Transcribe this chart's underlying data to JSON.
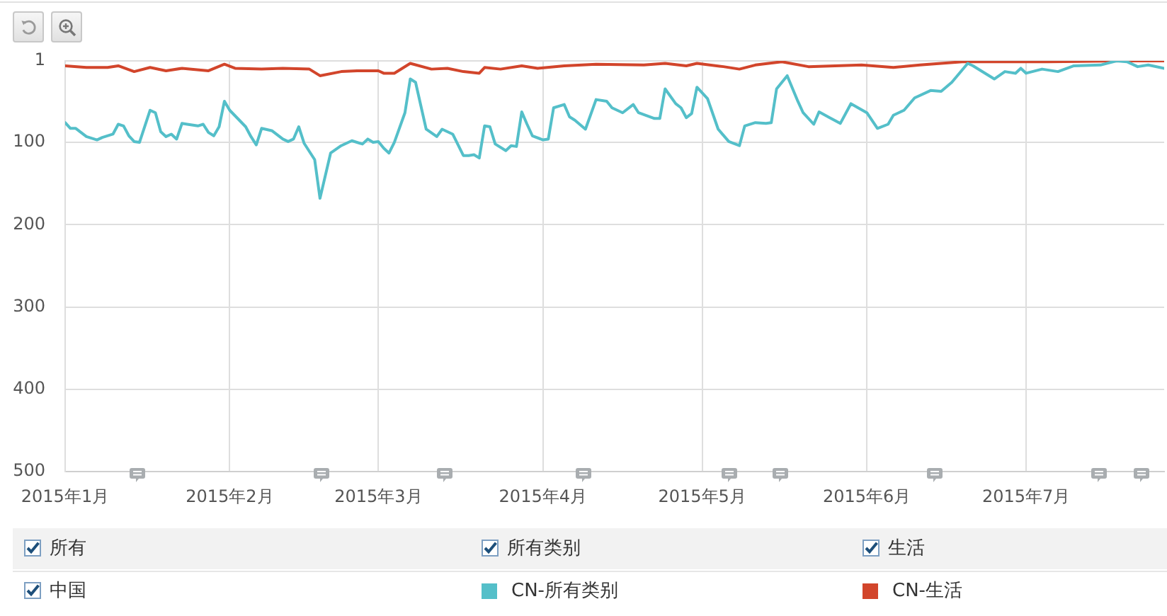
{
  "chart_data": {
    "type": "line",
    "series": [
      {
        "name": "CN-所有类别",
        "color": "#54bfc9",
        "x": [
          "2015-01-01",
          "2015-01-02",
          "2015-01-03",
          "2015-01-05",
          "2015-01-07",
          "2015-01-08",
          "2015-01-10",
          "2015-01-11",
          "2015-01-12",
          "2015-01-13",
          "2015-01-14",
          "2015-01-15",
          "2015-01-17",
          "2015-01-18",
          "2015-01-19",
          "2015-01-20",
          "2015-01-21",
          "2015-01-22",
          "2015-01-23",
          "2015-01-24",
          "2015-01-26",
          "2015-01-27",
          "2015-01-28",
          "2015-01-29",
          "2015-01-30",
          "2015-01-31",
          "2015-02-01",
          "2015-02-04",
          "2015-02-05",
          "2015-02-06",
          "2015-02-07",
          "2015-02-09",
          "2015-02-11",
          "2015-02-12",
          "2015-02-13",
          "2015-02-14",
          "2015-02-15",
          "2015-02-17",
          "2015-02-18",
          "2015-02-20",
          "2015-02-22",
          "2015-02-24",
          "2015-02-26",
          "2015-02-27",
          "2015-02-28",
          "2015-03-01",
          "2015-03-02",
          "2015-03-03",
          "2015-03-04",
          "2015-03-06",
          "2015-03-07",
          "2015-03-08",
          "2015-03-10",
          "2015-03-12",
          "2015-03-13",
          "2015-03-15",
          "2015-03-17",
          "2015-03-18",
          "2015-03-19",
          "2015-03-20",
          "2015-03-21",
          "2015-03-22",
          "2015-03-23",
          "2015-03-25",
          "2015-03-26",
          "2015-03-27",
          "2015-03-28",
          "2015-03-29",
          "2015-03-30",
          "2015-04-01",
          "2015-04-02",
          "2015-04-03",
          "2015-04-05",
          "2015-04-06",
          "2015-04-07",
          "2015-04-09",
          "2015-04-11",
          "2015-04-13",
          "2015-04-14",
          "2015-04-16",
          "2015-04-18",
          "2015-04-19",
          "2015-04-22",
          "2015-04-23",
          "2015-04-24",
          "2015-04-26",
          "2015-04-27",
          "2015-04-28",
          "2015-04-29",
          "2015-04-30",
          "2015-05-02",
          "2015-05-04",
          "2015-05-06",
          "2015-05-08",
          "2015-05-09",
          "2015-05-11",
          "2015-05-13",
          "2015-05-14",
          "2015-05-15",
          "2015-05-17",
          "2015-05-19",
          "2015-05-20",
          "2015-05-22",
          "2015-05-23",
          "2015-05-25",
          "2015-05-27",
          "2015-05-29",
          "2015-06-01",
          "2015-06-03",
          "2015-06-05",
          "2015-06-06",
          "2015-06-08",
          "2015-06-10",
          "2015-06-13",
          "2015-06-15",
          "2015-06-17",
          "2015-06-20",
          "2015-06-21",
          "2015-06-25",
          "2015-06-27",
          "2015-06-29",
          "2015-06-30",
          "2015-07-01",
          "2015-07-04",
          "2015-07-07",
          "2015-07-10",
          "2015-07-15",
          "2015-07-18",
          "2015-07-20",
          "2015-07-22",
          "2015-07-24",
          "2015-07-27"
        ],
        "values": [
          76,
          83,
          83,
          93,
          97,
          94,
          90,
          78,
          80,
          92,
          99,
          100,
          61,
          64,
          87,
          93,
          90,
          96,
          77,
          78,
          80,
          78,
          88,
          92,
          81,
          50,
          61,
          81,
          93,
          103,
          83,
          86,
          96,
          99,
          96,
          81,
          101,
          121,
          168,
          113,
          104,
          98,
          102,
          96,
          100,
          99,
          107,
          113,
          100,
          64,
          23,
          27,
          84,
          93,
          84,
          90,
          116,
          116,
          115,
          119,
          80,
          81,
          102,
          110,
          104,
          105,
          63,
          78,
          92,
          97,
          96,
          58,
          54,
          69,
          73,
          84,
          48,
          50,
          58,
          64,
          54,
          64,
          71,
          71,
          35,
          53,
          58,
          70,
          65,
          33,
          47,
          84,
          99,
          104,
          80,
          76,
          77,
          76,
          35,
          19,
          50,
          64,
          78,
          63,
          70,
          77,
          53,
          64,
          83,
          78,
          67,
          61,
          46,
          37,
          38,
          27,
          4,
          7,
          23,
          14,
          16,
          10,
          16,
          11,
          14,
          7,
          6,
          1,
          2,
          8,
          6,
          10
        ]
      },
      {
        "name": "CN-生活",
        "color": "#d2452b",
        "x": [
          "2015-01-01",
          "2015-01-05",
          "2015-01-09",
          "2015-01-11",
          "2015-01-14",
          "2015-01-17",
          "2015-01-20",
          "2015-01-23",
          "2015-01-28",
          "2015-01-31",
          "2015-02-02",
          "2015-02-07",
          "2015-02-11",
          "2015-02-16",
          "2015-02-18",
          "2015-02-22",
          "2015-02-25",
          "2015-03-01",
          "2015-03-02",
          "2015-03-04",
          "2015-03-07",
          "2015-03-11",
          "2015-03-14",
          "2015-03-17",
          "2015-03-20",
          "2015-03-21",
          "2015-03-24",
          "2015-03-28",
          "2015-03-31",
          "2015-04-05",
          "2015-04-11",
          "2015-04-20",
          "2015-04-24",
          "2015-04-28",
          "2015-04-30",
          "2015-05-05",
          "2015-05-08",
          "2015-05-11",
          "2015-05-16",
          "2015-05-21",
          "2015-05-31",
          "2015-06-06",
          "2015-06-11",
          "2015-06-19",
          "2015-07-05",
          "2015-07-19",
          "2015-07-27"
        ],
        "values": [
          7,
          9,
          9,
          7,
          14,
          9,
          13,
          10,
          13,
          5,
          10,
          11,
          10,
          11,
          19,
          14,
          13,
          13,
          16,
          16,
          4,
          11,
          10,
          14,
          16,
          9,
          11,
          7,
          10,
          7,
          5,
          6,
          4,
          7,
          4,
          8,
          11,
          6,
          2,
          8,
          6,
          9,
          6,
          2,
          2,
          1,
          1
        ]
      }
    ],
    "xlim": [
      "2015-01-01",
      "2015-07-27"
    ],
    "xticks": [
      {
        "value": "2015-01-01",
        "label": "2015年1月"
      },
      {
        "value": "2015-02-01",
        "label": "2015年2月"
      },
      {
        "value": "2015-03-01",
        "label": "2015年3月"
      },
      {
        "value": "2015-04-01",
        "label": "2015年4月"
      },
      {
        "value": "2015-05-01",
        "label": "2015年5月"
      },
      {
        "value": "2015-06-01",
        "label": "2015年6月"
      },
      {
        "value": "2015-07-01",
        "label": "2015年7月"
      }
    ],
    "ylim": [
      500,
      1
    ],
    "yticks": [
      1,
      100,
      200,
      300,
      400,
      500
    ],
    "grid": true,
    "legend": "bottom",
    "marker": "none",
    "line_style": "solid",
    "annotations": [
      "所有",
      "所有类别",
      "生活",
      "中国"
    ]
  }
}
